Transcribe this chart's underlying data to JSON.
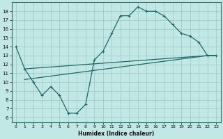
{
  "xlabel": "Humidex (Indice chaleur)",
  "bg_color": "#c2e8e5",
  "grid_color": "#9dc8c5",
  "line_color": "#1a6b6b",
  "xlim": [
    -0.5,
    23.5
  ],
  "ylim": [
    5.5,
    19.0
  ],
  "yticks": [
    6,
    7,
    8,
    9,
    10,
    11,
    12,
    13,
    14,
    15,
    16,
    17,
    18
  ],
  "xticks": [
    0,
    1,
    2,
    3,
    4,
    5,
    6,
    7,
    8,
    9,
    10,
    11,
    12,
    13,
    14,
    15,
    16,
    17,
    18,
    19,
    20,
    21,
    22,
    23
  ],
  "line1_x": [
    0,
    1,
    2,
    3,
    4,
    5,
    6,
    7,
    8,
    9,
    10,
    11,
    12,
    13,
    14,
    15,
    16,
    17,
    18,
    19,
    20,
    21,
    22,
    23
  ],
  "line1_y": [
    14.0,
    11.5,
    10.0,
    8.5,
    9.5,
    8.5,
    6.5,
    6.5,
    7.5,
    12.5,
    13.5,
    15.5,
    17.5,
    17.5,
    18.5,
    18.0,
    18.0,
    17.5,
    16.5,
    15.5,
    15.2,
    14.5,
    13.0,
    13.0
  ],
  "line2_x": [
    1,
    22,
    23
  ],
  "line2_y": [
    11.5,
    13.0,
    13.0
  ],
  "line3_x": [
    1,
    22,
    23
  ],
  "line3_y": [
    10.3,
    13.0,
    13.0
  ]
}
